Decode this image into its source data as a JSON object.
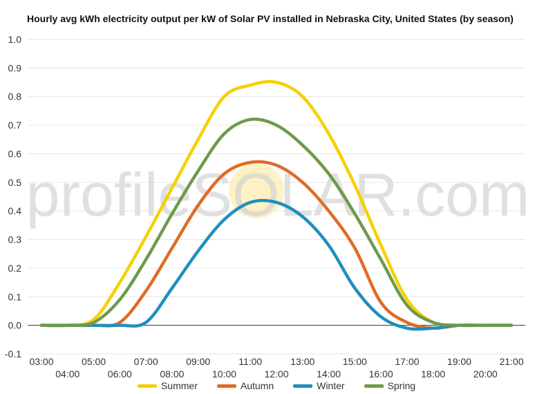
{
  "chart_data": {
    "type": "line",
    "title": "Hourly avg kWh electricity output per kW of Solar PV installed in Nebraska City, United States (by season)",
    "xlabel": "",
    "ylabel": "",
    "ylim": [
      -0.1,
      1.0
    ],
    "yticks": [
      "1.0",
      "0.9",
      "0.8",
      "0.7",
      "0.6",
      "0.5",
      "0.4",
      "0.3",
      "0.2",
      "0.1",
      "0.0",
      "-0.1"
    ],
    "categories": [
      "03:00",
      "04:00",
      "05:00",
      "06:00",
      "07:00",
      "08:00",
      "09:00",
      "10:00",
      "11:00",
      "12:00",
      "13:00",
      "14:00",
      "15:00",
      "16:00",
      "17:00",
      "18:00",
      "19:00",
      "20:00",
      "21:00"
    ],
    "grid": true,
    "legend_position": "bottom",
    "series": [
      {
        "name": "Summer",
        "color": "#f5d000",
        "values": [
          0,
          0,
          0.02,
          0.15,
          0.31,
          0.48,
          0.65,
          0.8,
          0.84,
          0.85,
          0.8,
          0.67,
          0.49,
          0.28,
          0.09,
          0.01,
          0,
          0,
          0
        ]
      },
      {
        "name": "Autumn",
        "color": "#e06b26",
        "values": [
          0,
          0,
          0,
          0.01,
          0.12,
          0.27,
          0.42,
          0.53,
          0.57,
          0.56,
          0.5,
          0.4,
          0.27,
          0.08,
          0.01,
          -0.01,
          0,
          0,
          0
        ]
      },
      {
        "name": "Winter",
        "color": "#1f8fbd",
        "values": [
          0,
          0,
          0,
          0,
          0.01,
          0.13,
          0.26,
          0.37,
          0.43,
          0.43,
          0.38,
          0.28,
          0.13,
          0.03,
          -0.01,
          -0.01,
          0,
          0,
          0
        ]
      },
      {
        "name": "Spring",
        "color": "#6e9a4a",
        "values": [
          0,
          0,
          0.01,
          0.09,
          0.23,
          0.39,
          0.54,
          0.67,
          0.72,
          0.7,
          0.63,
          0.53,
          0.39,
          0.23,
          0.07,
          0.01,
          0,
          0,
          0
        ]
      }
    ]
  },
  "watermark": "profileSOLAR.com"
}
